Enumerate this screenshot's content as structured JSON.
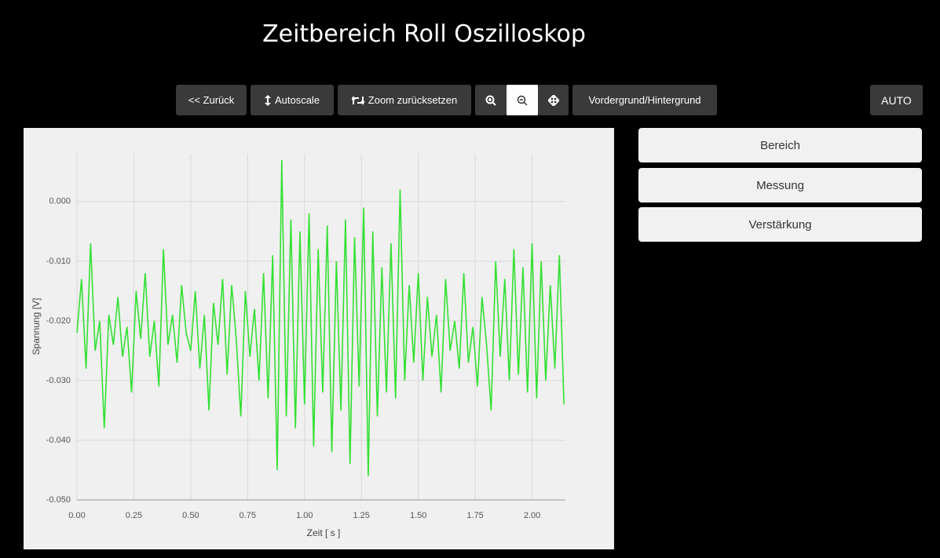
{
  "header": {
    "title": "Zeitbereich Roll Oszilloskop"
  },
  "toolbar": {
    "back": "<< Zurück",
    "autoscale": "Autoscale",
    "reset_zoom": "Zoom zurücksetzen",
    "layer": "Vordergrund/Hintergrund",
    "auto": "AUTO"
  },
  "side_panel": {
    "items": [
      "Bereich",
      "Messung",
      "Verstärkung"
    ]
  },
  "chart_data": {
    "type": "line",
    "x_label": "Zeit [ s ]",
    "y_label": "Spannung [V]",
    "xlim": [
      0,
      2.25
    ],
    "ylim": [
      -0.05,
      0.008
    ],
    "xticks": [
      {
        "value": 0,
        "label": "0.00"
      },
      0.25,
      {
        "value": 0.5,
        "label": "0.50"
      },
      0.75,
      {
        "value": 1,
        "label": "1.00"
      },
      1.25,
      {
        "value": 1.5,
        "label": "1.50"
      },
      1.75,
      {
        "value": 2,
        "label": "2.00"
      }
    ],
    "yticks": [
      {
        "value": 0,
        "label": "0.000"
      },
      {
        "value": -0.01,
        "label": "-0.010"
      },
      {
        "value": -0.02,
        "label": "-0.020"
      },
      {
        "value": -0.03,
        "label": "-0.030"
      },
      {
        "value": -0.04,
        "label": "-0.040"
      },
      {
        "value": -0.05,
        "label": "-0.050"
      }
    ],
    "grid": true,
    "x": [
      0.0,
      0.02,
      0.04,
      0.06,
      0.08,
      0.1,
      0.12,
      0.14,
      0.16,
      0.18,
      0.2,
      0.22,
      0.24,
      0.26,
      0.28,
      0.3,
      0.32,
      0.34,
      0.36,
      0.38,
      0.4,
      0.42,
      0.44,
      0.46,
      0.48,
      0.5,
      0.52,
      0.54,
      0.56,
      0.58,
      0.6,
      0.62,
      0.64,
      0.66,
      0.68,
      0.7,
      0.72,
      0.74,
      0.76,
      0.78,
      0.8,
      0.82,
      0.84,
      0.86,
      0.88,
      0.9,
      0.92,
      0.94,
      0.96,
      0.98,
      1.0,
      1.02,
      1.04,
      1.06,
      1.08,
      1.1,
      1.12,
      1.14,
      1.16,
      1.18,
      1.2,
      1.22,
      1.24,
      1.26,
      1.28,
      1.3,
      1.32,
      1.34,
      1.36,
      1.38,
      1.4,
      1.42,
      1.44,
      1.46,
      1.48,
      1.5,
      1.52,
      1.54,
      1.56,
      1.58,
      1.6,
      1.62,
      1.64,
      1.66,
      1.68,
      1.7,
      1.72,
      1.74,
      1.76,
      1.78,
      1.8,
      1.82,
      1.84,
      1.86,
      1.88,
      1.9,
      1.92,
      1.94,
      1.96,
      1.98,
      2.0,
      2.02,
      2.04,
      2.06,
      2.08,
      2.1,
      2.12,
      2.14
    ],
    "series": [
      {
        "name": "Roll",
        "color": "#33e033",
        "values": [
          -0.022,
          -0.013,
          -0.028,
          -0.007,
          -0.025,
          -0.02,
          -0.038,
          -0.019,
          -0.024,
          -0.016,
          -0.026,
          -0.021,
          -0.032,
          -0.015,
          -0.023,
          -0.012,
          -0.026,
          -0.02,
          -0.031,
          -0.008,
          -0.024,
          -0.019,
          -0.027,
          -0.014,
          -0.022,
          -0.025,
          -0.015,
          -0.028,
          -0.019,
          -0.035,
          -0.017,
          -0.024,
          -0.013,
          -0.029,
          -0.014,
          -0.023,
          -0.036,
          -0.015,
          -0.026,
          -0.018,
          -0.03,
          -0.012,
          -0.033,
          -0.009,
          -0.045,
          0.007,
          -0.036,
          -0.003,
          -0.038,
          -0.005,
          -0.034,
          -0.002,
          -0.041,
          -0.008,
          -0.032,
          -0.004,
          -0.042,
          -0.01,
          -0.035,
          -0.003,
          -0.044,
          -0.006,
          -0.031,
          -0.001,
          -0.046,
          -0.005,
          -0.036,
          -0.011,
          -0.032,
          -0.007,
          -0.033,
          0.002,
          -0.03,
          -0.014,
          -0.027,
          -0.012,
          -0.03,
          -0.016,
          -0.026,
          -0.019,
          -0.032,
          -0.013,
          -0.025,
          -0.02,
          -0.028,
          -0.012,
          -0.027,
          -0.021,
          -0.031,
          -0.016,
          -0.024,
          -0.035,
          -0.01,
          -0.026,
          -0.013,
          -0.03,
          -0.008,
          -0.029,
          -0.011,
          -0.032,
          -0.007,
          -0.033,
          -0.01,
          -0.03,
          -0.014,
          -0.028,
          -0.009,
          -0.034
        ]
      }
    ]
  }
}
